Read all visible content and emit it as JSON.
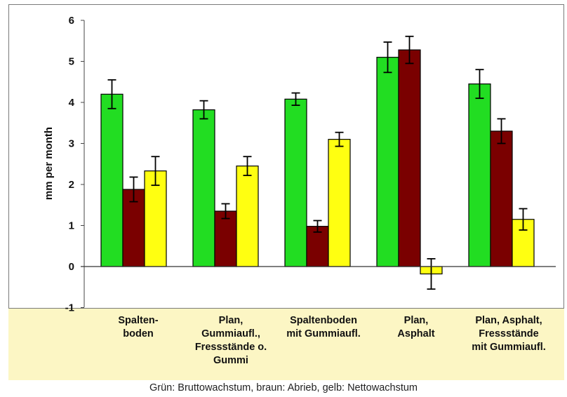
{
  "chart_data": {
    "type": "bar",
    "title": "",
    "xlabel": "",
    "ylabel": "mm per month",
    "ylim": [
      -1,
      6
    ],
    "yticks": [
      "-1",
      "0",
      "1",
      "2",
      "3",
      "4",
      "5",
      "6"
    ],
    "grid": false,
    "categories": [
      "Spalten-\nboden",
      "Plan,\nGummiaufl.,\nFressstände o.\nGummi",
      "Spaltenboden\nmit Gummiaufl.",
      "Plan,\nAsphalt",
      "Plan, Asphalt,\nFressstände\nmit Gummiaufl."
    ],
    "series": [
      {
        "color": "#22dd22",
        "values": [
          4.2,
          3.82,
          4.08,
          5.1,
          4.45
        ],
        "errors": [
          0.35,
          0.22,
          0.15,
          0.37,
          0.35
        ]
      },
      {
        "color": "#7a0000",
        "values": [
          1.88,
          1.35,
          0.98,
          5.28,
          3.3
        ],
        "errors": [
          0.3,
          0.18,
          0.14,
          0.33,
          0.3
        ]
      },
      {
        "color": "#ffff11",
        "values": [
          2.33,
          2.45,
          3.1,
          -0.18,
          1.15
        ],
        "errors": [
          0.35,
          0.23,
          0.17,
          0.37,
          0.26
        ]
      }
    ],
    "caption": "Grün: Bruttowachstum, braun: Abrieb, gelb: Nettowachstum"
  }
}
